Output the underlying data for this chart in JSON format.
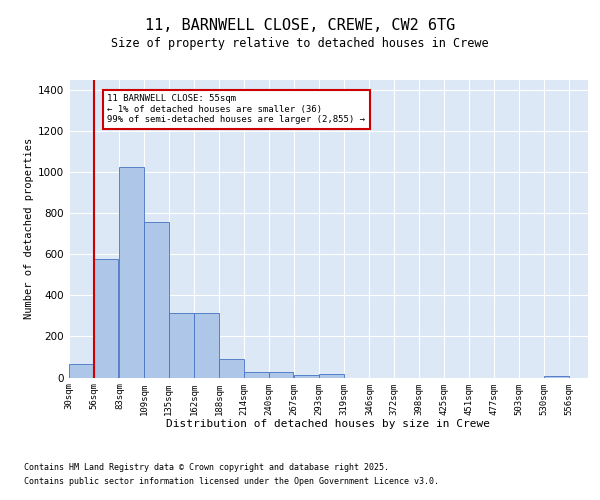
{
  "title1": "11, BARNWELL CLOSE, CREWE, CW2 6TG",
  "title2": "Size of property relative to detached houses in Crewe",
  "xlabel": "Distribution of detached houses by size in Crewe",
  "ylabel": "Number of detached properties",
  "bin_labels": [
    "30sqm",
    "56sqm",
    "83sqm",
    "109sqm",
    "135sqm",
    "162sqm",
    "188sqm",
    "214sqm",
    "240sqm",
    "267sqm",
    "293sqm",
    "319sqm",
    "346sqm",
    "372sqm",
    "398sqm",
    "425sqm",
    "451sqm",
    "477sqm",
    "503sqm",
    "530sqm",
    "556sqm"
  ],
  "bin_edges": [
    30,
    56,
    83,
    109,
    135,
    162,
    188,
    214,
    240,
    267,
    293,
    319,
    346,
    372,
    398,
    425,
    451,
    477,
    503,
    530,
    556
  ],
  "bar_heights": [
    65,
    580,
    1025,
    760,
    315,
    315,
    90,
    25,
    25,
    10,
    15,
    0,
    0,
    0,
    0,
    0,
    0,
    0,
    0,
    5,
    0
  ],
  "bar_color": "#aec6e8",
  "bar_edge_color": "#4472c4",
  "red_line_x": 56,
  "annotation_text": "11 BARNWELL CLOSE: 55sqm\n← 1% of detached houses are smaller (36)\n99% of semi-detached houses are larger (2,855) →",
  "annotation_box_color": "#ffffff",
  "annotation_box_edge": "#cc0000",
  "footnote1": "Contains HM Land Registry data © Crown copyright and database right 2025.",
  "footnote2": "Contains public sector information licensed under the Open Government Licence v3.0.",
  "fig_facecolor": "#ffffff",
  "plot_background": "#dce8f5",
  "ylim": [
    0,
    1450
  ],
  "yticks": [
    0,
    200,
    400,
    600,
    800,
    1000,
    1200,
    1400
  ]
}
